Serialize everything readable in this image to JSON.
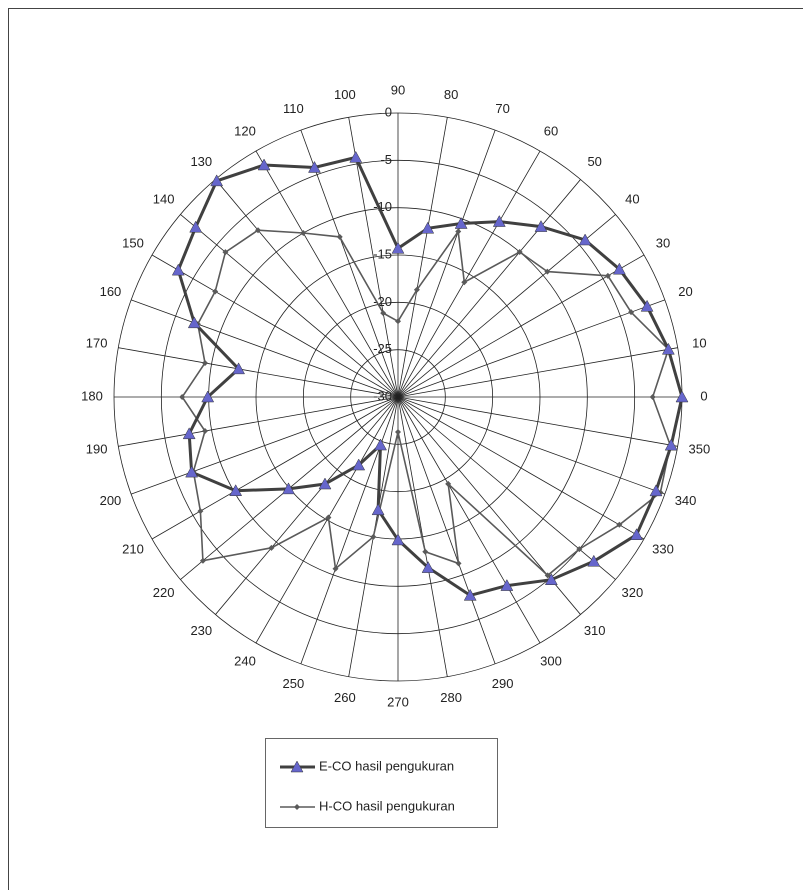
{
  "chart_data": {
    "type": "radar",
    "categories": [
      0,
      10,
      20,
      30,
      40,
      50,
      60,
      70,
      80,
      90,
      100,
      110,
      120,
      130,
      140,
      150,
      160,
      170,
      180,
      190,
      200,
      210,
      220,
      230,
      240,
      250,
      260,
      270,
      280,
      290,
      300,
      310,
      320,
      330,
      340,
      350
    ],
    "ylim": [
      -30,
      0
    ],
    "yticks": [
      0,
      -5,
      -10,
      -15,
      -20,
      -25,
      -30
    ],
    "grid": true,
    "legend": "bottom",
    "series": [
      {
        "name": "E-CO hasil pengukuran",
        "color": "#404040",
        "marker_color": "#6666cc",
        "values": [
          0,
          -1,
          -2,
          -3,
          -4.2,
          -6.5,
          -8.6,
          -10.5,
          -11.9,
          -14.3,
          -4.3,
          -4.2,
          -1.7,
          -0.2,
          -2.1,
          -3.2,
          -7.1,
          -12.9,
          -9.9,
          -7.6,
          -6.8,
          -10.2,
          -14.9,
          -18,
          -21.7,
          -24.6,
          -17.9,
          -14.9,
          -11.7,
          -7.7,
          -7,
          -4.8,
          -3,
          -0.9,
          -1,
          -0.7
        ]
      },
      {
        "name": "H-CO hasil pengukuran",
        "color": "#5a5a5a",
        "marker_color": "#5a5a5a",
        "values": [
          -3.1,
          -1,
          -3.8,
          -4.4,
          -9.4,
          -10,
          -16,
          -11.4,
          -18.5,
          -22,
          -21,
          -12,
          -10,
          -7,
          -6.2,
          -7.7,
          -7.5,
          -9.3,
          -7.2,
          -9.3,
          -7,
          -5.9,
          -3.1,
          -9.2,
          -15.3,
          -10.7,
          -15,
          -26.3,
          -13.4,
          -11.3,
          -19.4,
          -5.4,
          -5,
          -3,
          -0.5,
          -0.8
        ]
      }
    ]
  }
}
